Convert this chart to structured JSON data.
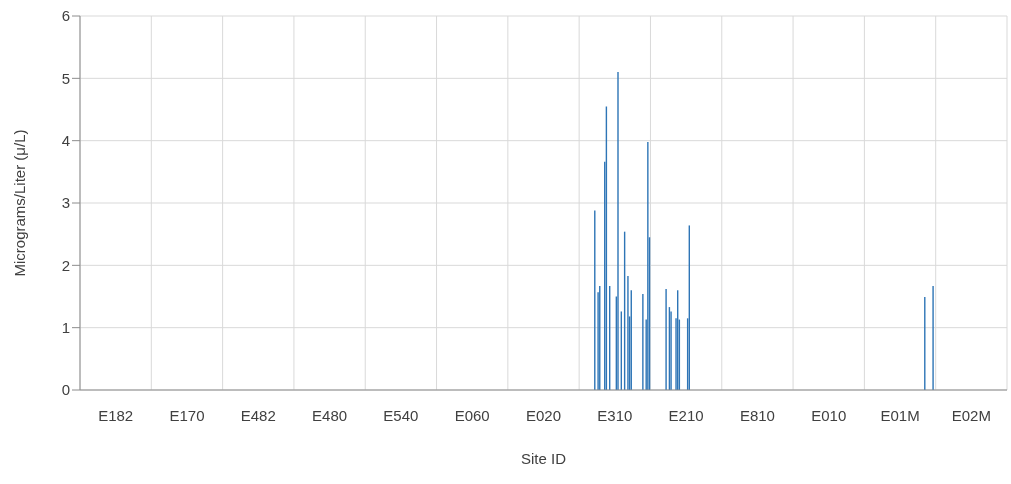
{
  "chart_data": {
    "type": "bar",
    "xlabel": "Site ID",
    "ylabel": "Micrograms/Liter (μ/L)",
    "categories": [
      null,
      null,
      null,
      null,
      null,
      null,
      null,
      null,
      null,
      null,
      null,
      null,
      null,
      null,
      null,
      null,
      null,
      null,
      null,
      null,
      null,
      "E182",
      null,
      null,
      null,
      null,
      null,
      null,
      null,
      null,
      null,
      null,
      null,
      null,
      null,
      null,
      null,
      null,
      null,
      null,
      null,
      null,
      null,
      null,
      null,
      null,
      null,
      null,
      null,
      null,
      null,
      null,
      null,
      null,
      null,
      null,
      null,
      null,
      null,
      null,
      null,
      null,
      null,
      null,
      "E170",
      null,
      null,
      null,
      null,
      null,
      null,
      null,
      null,
      null,
      null,
      null,
      null,
      null,
      null,
      null,
      null,
      null,
      null,
      null,
      null,
      null,
      null,
      null,
      null,
      null,
      null,
      null,
      null,
      null,
      null,
      null,
      null,
      null,
      null,
      null,
      null,
      null,
      null,
      null,
      null,
      null,
      null,
      "E482",
      null,
      null,
      null,
      null,
      null,
      null,
      null,
      null,
      null,
      null,
      null,
      null,
      null,
      null,
      null,
      null,
      null,
      null,
      null,
      null,
      null,
      null,
      null,
      null,
      null,
      null,
      null,
      null,
      null,
      null,
      null,
      null,
      null,
      null,
      null,
      null,
      null,
      null,
      null,
      null,
      null,
      null,
      "E480",
      null,
      null,
      null,
      null,
      null,
      null,
      null,
      null,
      null,
      null,
      null,
      null,
      null,
      null,
      null,
      null,
      null,
      null,
      null,
      null,
      null,
      null,
      null,
      null,
      null,
      null,
      null,
      null,
      null,
      null,
      null,
      null,
      null,
      null,
      null,
      null,
      null,
      null,
      null,
      null,
      null,
      null,
      "E540",
      null,
      null,
      null,
      null,
      null,
      null,
      null,
      null,
      null,
      null,
      null,
      null,
      null,
      null,
      null,
      null,
      null,
      null,
      null,
      null,
      null,
      null,
      null,
      null,
      null,
      null,
      null,
      null,
      null,
      null,
      null,
      null,
      null,
      null,
      null,
      null,
      null,
      null,
      null,
      null,
      null,
      null,
      "E060",
      null,
      null,
      null,
      null,
      null,
      null,
      null,
      null,
      null,
      null,
      null,
      null,
      null,
      null,
      null,
      null,
      null,
      null,
      null,
      null,
      null,
      null,
      null,
      null,
      null,
      null,
      null,
      null,
      null,
      null,
      null,
      null,
      null,
      null,
      null,
      null,
      null,
      null,
      null,
      null,
      null,
      null,
      "E020",
      null,
      null,
      null,
      null,
      null,
      null,
      null,
      null,
      null,
      null,
      null,
      null,
      null,
      null,
      null,
      null,
      null,
      null,
      null,
      null,
      null,
      null,
      null,
      null,
      null,
      null,
      null,
      null,
      null,
      null,
      null,
      null,
      null,
      null,
      null,
      null,
      null,
      null,
      null,
      null,
      null,
      null,
      "E310",
      null,
      null,
      null,
      null,
      null,
      null,
      null,
      null,
      null,
      null,
      null,
      null,
      null,
      null,
      null,
      null,
      null,
      null,
      null,
      null,
      null,
      null,
      null,
      null,
      null,
      null,
      null,
      null,
      null,
      null,
      null,
      null,
      null,
      null,
      null,
      null,
      null,
      null,
      null,
      null,
      null,
      null,
      "E210",
      null,
      null,
      null,
      null,
      null,
      null,
      null,
      null,
      null,
      null,
      null,
      null,
      null,
      null,
      null,
      null,
      null,
      null,
      null,
      null,
      null,
      null,
      null,
      null,
      null,
      null,
      null,
      null,
      null,
      null,
      null,
      null,
      null,
      null,
      null,
      null,
      null,
      null,
      null,
      null,
      null,
      null,
      "E810",
      null,
      null,
      null,
      null,
      null,
      null,
      null,
      null,
      null,
      null,
      null,
      null,
      null,
      null,
      null,
      null,
      null,
      null,
      null,
      null,
      null,
      null,
      null,
      null,
      null,
      null,
      null,
      null,
      null,
      null,
      null,
      null,
      null,
      null,
      null,
      null,
      null,
      null,
      null,
      null,
      null,
      null,
      "E010",
      null,
      null,
      null,
      null,
      null,
      null,
      null,
      null,
      null,
      null,
      null,
      null,
      null,
      null,
      null,
      null,
      null,
      null,
      null,
      null,
      null,
      null,
      null,
      null,
      null,
      null,
      null,
      null,
      null,
      null,
      null,
      null,
      null,
      null,
      null,
      null,
      null,
      null,
      null,
      null,
      null,
      null,
      "E01M",
      null,
      null,
      null,
      null,
      null,
      null,
      null,
      null,
      null,
      null,
      null,
      null,
      null,
      null,
      null,
      null,
      null,
      null,
      null,
      null,
      null,
      null,
      null,
      null,
      null,
      null,
      null,
      null,
      null,
      null,
      null,
      null,
      null,
      null,
      null,
      null,
      null,
      null,
      null,
      null,
      null,
      null,
      "E02M",
      null,
      null,
      null,
      null,
      null,
      null,
      null,
      null,
      null,
      null,
      null,
      null,
      null,
      null,
      null,
      null,
      null,
      null,
      null,
      null,
      null
    ],
    "values": [
      null,
      null,
      null,
      null,
      null,
      null,
      null,
      null,
      null,
      null,
      null,
      null,
      null,
      null,
      null,
      null,
      null,
      null,
      null,
      null,
      null,
      null,
      null,
      null,
      null,
      null,
      null,
      null,
      null,
      null,
      null,
      null,
      null,
      null,
      null,
      null,
      null,
      null,
      null,
      null,
      null,
      null,
      null,
      null,
      null,
      null,
      null,
      null,
      null,
      null,
      null,
      null,
      null,
      null,
      null,
      null,
      null,
      null,
      null,
      null,
      null,
      null,
      null,
      null,
      null,
      null,
      null,
      null,
      null,
      null,
      null,
      null,
      null,
      null,
      null,
      null,
      null,
      null,
      null,
      null,
      null,
      null,
      null,
      null,
      null,
      null,
      null,
      null,
      null,
      null,
      null,
      null,
      null,
      null,
      null,
      null,
      null,
      null,
      null,
      null,
      null,
      null,
      null,
      null,
      null,
      null,
      null,
      null,
      null,
      null,
      null,
      null,
      null,
      null,
      null,
      null,
      null,
      null,
      null,
      null,
      null,
      null,
      null,
      null,
      null,
      null,
      null,
      null,
      null,
      null,
      null,
      null,
      null,
      null,
      null,
      null,
      null,
      null,
      null,
      null,
      null,
      null,
      null,
      null,
      null,
      null,
      null,
      null,
      null,
      null,
      null,
      null,
      null,
      null,
      null,
      null,
      null,
      null,
      null,
      null,
      null,
      null,
      null,
      null,
      null,
      null,
      null,
      null,
      null,
      null,
      null,
      null,
      null,
      null,
      null,
      null,
      null,
      null,
      null,
      null,
      null,
      null,
      null,
      null,
      null,
      null,
      null,
      null,
      null,
      null,
      null,
      null,
      null,
      null,
      null,
      null,
      null,
      null,
      null,
      null,
      null,
      null,
      null,
      null,
      null,
      null,
      null,
      null,
      null,
      null,
      null,
      null,
      null,
      null,
      null,
      null,
      null,
      null,
      null,
      null,
      null,
      null,
      null,
      null,
      null,
      null,
      null,
      null,
      null,
      null,
      null,
      null,
      null,
      null,
      null,
      null,
      null,
      null,
      null,
      null,
      null,
      null,
      null,
      null,
      null,
      null,
      null,
      null,
      null,
      null,
      null,
      null,
      null,
      null,
      null,
      null,
      null,
      null,
      null,
      null,
      null,
      null,
      null,
      null,
      null,
      null,
      null,
      null,
      null,
      null,
      null,
      null,
      null,
      null,
      null,
      null,
      null,
      null,
      null,
      null,
      null,
      null,
      null,
      null,
      null,
      null,
      null,
      null,
      null,
      null,
      null,
      null,
      null,
      null,
      null,
      null,
      null,
      null,
      null,
      null,
      null,
      null,
      null,
      null,
      null,
      null,
      null,
      null,
      null,
      null,
      2.88,
      null,
      1.57,
      1.67,
      null,
      null,
      3.66,
      4.55,
      null,
      1.67,
      null,
      null,
      null,
      1.5,
      5.1,
      null,
      1.26,
      null,
      2.54,
      null,
      1.83,
      1.18,
      1.6,
      null,
      null,
      null,
      null,
      null,
      null,
      1.54,
      null,
      1.13,
      3.98,
      2.45,
      null,
      null,
      null,
      null,
      null,
      null,
      null,
      null,
      null,
      1.62,
      null,
      1.33,
      1.26,
      null,
      null,
      1.15,
      1.6,
      1.13,
      null,
      null,
      null,
      null,
      1.15,
      2.64,
      null,
      null,
      null,
      null,
      null,
      null,
      null,
      null,
      null,
      null,
      null,
      null,
      null,
      null,
      null,
      null,
      null,
      null,
      null,
      null,
      null,
      null,
      null,
      null,
      null,
      null,
      null,
      null,
      null,
      null,
      null,
      null,
      null,
      null,
      null,
      null,
      null,
      null,
      null,
      null,
      null,
      null,
      null,
      null,
      null,
      null,
      null,
      null,
      null,
      null,
      null,
      null,
      null,
      null,
      null,
      null,
      null,
      null,
      null,
      null,
      null,
      null,
      null,
      null,
      null,
      null,
      null,
      null,
      null,
      null,
      null,
      null,
      null,
      null,
      null,
      null,
      null,
      null,
      null,
      null,
      null,
      null,
      null,
      null,
      null,
      null,
      null,
      null,
      null,
      null,
      null,
      null,
      null,
      null,
      null,
      null,
      null,
      null,
      null,
      null,
      null,
      null,
      null,
      null,
      null,
      null,
      null,
      null,
      null,
      null,
      null,
      null,
      null,
      null,
      null,
      null,
      null,
      null,
      null,
      null,
      null,
      null,
      null,
      null,
      null,
      null,
      null,
      null,
      null,
      null,
      null,
      null,
      null,
      null,
      null,
      null,
      null,
      null,
      null,
      null,
      null,
      1.49,
      null,
      null,
      null,
      null,
      1.67,
      null,
      null,
      null,
      null,
      null,
      null,
      null,
      null,
      null,
      null,
      null,
      null,
      null,
      null,
      null,
      null,
      null,
      null,
      null,
      null,
      null,
      null,
      null,
      null,
      null,
      null,
      null,
      null,
      null,
      null,
      null,
      null,
      null,
      null,
      null,
      null,
      null,
      null,
      null,
      null,
      null,
      null,
      null,
      null
    ],
    "color": "#2e75b6",
    "ylim": [
      0,
      6
    ],
    "yticks": [
      0,
      1,
      2,
      3,
      4,
      5,
      6
    ],
    "grid": true,
    "legend": false
  }
}
